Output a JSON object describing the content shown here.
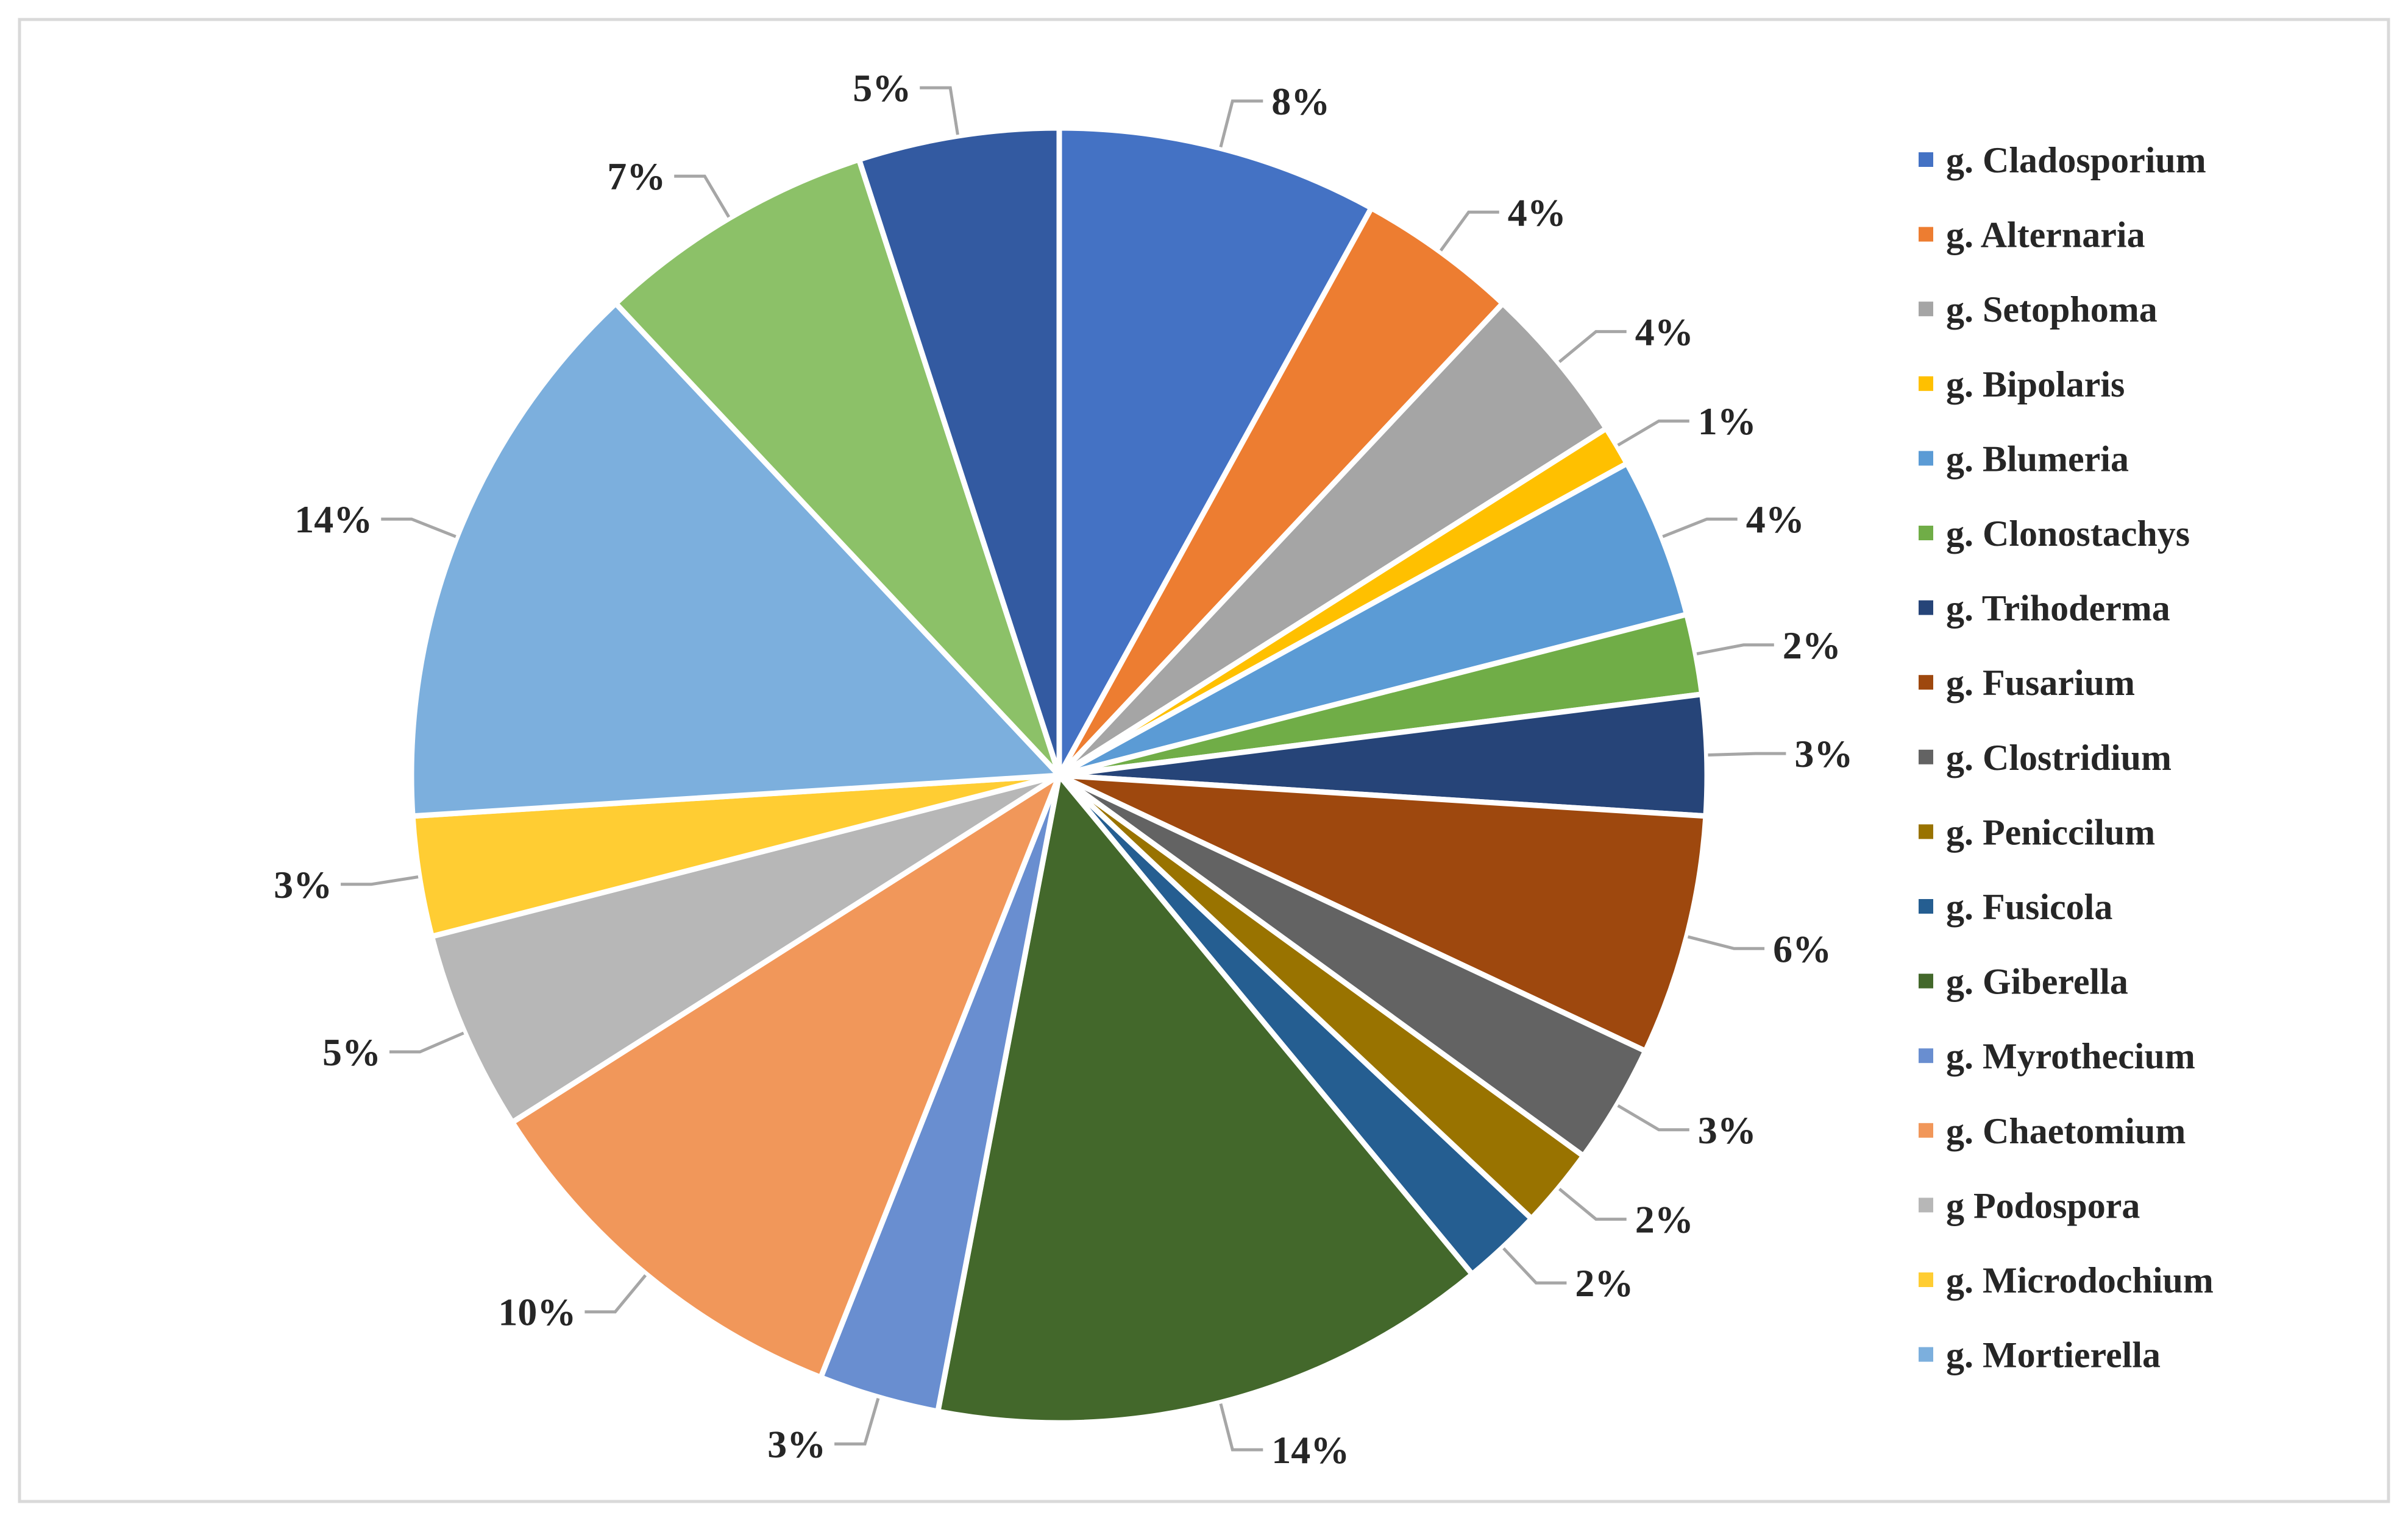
{
  "chart_data": {
    "type": "pie",
    "title": "",
    "start_angle_deg": 0,
    "direction": "clockwise",
    "legend_position": "right",
    "slices": [
      {
        "name": "g. Cladosporium",
        "value": 8,
        "label": "8%",
        "color": "#4472C4"
      },
      {
        "name": "g. Alternaria",
        "value": 4,
        "label": "4%",
        "color": "#ED7D31"
      },
      {
        "name": "g. Setophoma",
        "value": 4,
        "label": "4%",
        "color": "#A5A5A5"
      },
      {
        "name": "g. Bipolaris",
        "value": 1,
        "label": "1%",
        "color": "#FFC000"
      },
      {
        "name": "g. Blumeria",
        "value": 4,
        "label": "4%",
        "color": "#5B9BD5"
      },
      {
        "name": "g. Clonostachys",
        "value": 2,
        "label": "2%",
        "color": "#70AD47"
      },
      {
        "name": "g. Trihoderma",
        "value": 3,
        "label": "3%",
        "color": "#264478"
      },
      {
        "name": "g. Fusarium",
        "value": 6,
        "label": "6%",
        "color": "#9E480E"
      },
      {
        "name": "g. Clostridium",
        "value": 3,
        "label": "3%",
        "color": "#636363"
      },
      {
        "name": "g. Peniccilum",
        "value": 2,
        "label": "2%",
        "color": "#997300"
      },
      {
        "name": "g. Fusicola",
        "value": 2,
        "label": "2%",
        "color": "#255E91"
      },
      {
        "name": "g. Giberella",
        "value": 14,
        "label": "14%",
        "color": "#43682B"
      },
      {
        "name": " g. Myrothecium",
        "value": 3,
        "label": "3%",
        "color": "#698ED0"
      },
      {
        "name": "g. Chaetomium",
        "value": 10,
        "label": "10%",
        "color": "#F1975A"
      },
      {
        "name": "g Podospora",
        "value": 5,
        "label": "5%",
        "color": "#B7B7B7"
      },
      {
        "name": "g. Microdochium",
        "value": 3,
        "label": "3%",
        "color": "#FFCD33"
      },
      {
        "name": "g. Mortierella",
        "value": 14,
        "label": "14%",
        "color": "#7CAFDD"
      },
      {
        "name": "",
        "value": 7,
        "label": "7%",
        "color": "#8CC168"
      },
      {
        "name": "",
        "value": 5,
        "label": "5%",
        "color": "#335AA1"
      }
    ]
  }
}
